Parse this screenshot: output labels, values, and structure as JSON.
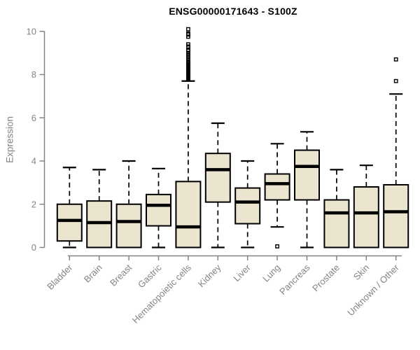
{
  "chart_data": {
    "type": "boxplot",
    "title": "ENSG00000171643 - S100Z",
    "ylabel": "Expression",
    "xlabel": "",
    "ylim": [
      0,
      10
    ],
    "yticks": [
      0,
      2,
      4,
      6,
      8,
      10
    ],
    "grid": false,
    "legend": false,
    "categories": [
      "Bladder",
      "Brain",
      "Breast",
      "Gastric",
      "Hematopoietic cells",
      "Kidney",
      "Liver",
      "Lung",
      "Pancreas",
      "Prostate",
      "Skin",
      "Unknown / Other"
    ],
    "boxes": [
      {
        "category": "Bladder",
        "whisker_low": 0,
        "q1": 0.3,
        "median": 1.25,
        "q3": 2.0,
        "whisker_high": 3.7,
        "outliers": []
      },
      {
        "category": "Brain",
        "whisker_low": 0,
        "q1": 0,
        "median": 1.15,
        "q3": 2.15,
        "whisker_high": 3.6,
        "outliers": []
      },
      {
        "category": "Breast",
        "whisker_low": 0,
        "q1": 0,
        "median": 1.2,
        "q3": 2.0,
        "whisker_high": 4.0,
        "outliers": []
      },
      {
        "category": "Gastric",
        "whisker_low": 0,
        "q1": 1.0,
        "median": 1.95,
        "q3": 2.45,
        "whisker_high": 3.65,
        "outliers": []
      },
      {
        "category": "Hematopoietic cells",
        "whisker_low": 0,
        "q1": 0,
        "median": 0.95,
        "q3": 3.05,
        "whisker_high": 7.7,
        "outliers": [
          7.8,
          7.83,
          7.86,
          7.9,
          7.93,
          7.96,
          8.0,
          8.03,
          8.06,
          8.1,
          8.13,
          8.17,
          8.2,
          8.24,
          8.28,
          8.32,
          8.36,
          8.4,
          8.45,
          8.5,
          8.55,
          8.6,
          8.7,
          8.8,
          8.9,
          9.0,
          9.1,
          9.15,
          9.25,
          9.3,
          9.4,
          9.75,
          9.85,
          9.9,
          10.1
        ]
      },
      {
        "category": "Kidney",
        "whisker_low": 0,
        "q1": 2.1,
        "median": 3.6,
        "q3": 4.35,
        "whisker_high": 5.75,
        "outliers": []
      },
      {
        "category": "Liver",
        "whisker_low": 0,
        "q1": 1.1,
        "median": 2.1,
        "q3": 2.75,
        "whisker_high": 4.0,
        "outliers": []
      },
      {
        "category": "Lung",
        "whisker_low": 0.95,
        "q1": 2.2,
        "median": 2.95,
        "q3": 3.4,
        "whisker_high": 4.8,
        "outliers": [
          0.05
        ]
      },
      {
        "category": "Pancreas",
        "whisker_low": 0,
        "q1": 2.2,
        "median": 3.75,
        "q3": 4.5,
        "whisker_high": 5.35,
        "outliers": []
      },
      {
        "category": "Prostate",
        "whisker_low": 0,
        "q1": 0,
        "median": 1.6,
        "q3": 2.2,
        "whisker_high": 3.6,
        "outliers": []
      },
      {
        "category": "Skin",
        "whisker_low": 0,
        "q1": 0,
        "median": 1.6,
        "q3": 2.8,
        "whisker_high": 3.8,
        "outliers": []
      },
      {
        "category": "Unknown / Other",
        "whisker_low": 0,
        "q1": 0,
        "median": 1.65,
        "q3": 2.9,
        "whisker_high": 7.1,
        "outliers": [
          7.7,
          8.7
        ]
      }
    ]
  },
  "colors": {
    "background": "#ffffff",
    "box_fill": "#ebe5cf",
    "box_border": "#000000",
    "median": "#000000",
    "whisker": "#000000",
    "outlier": "#000000",
    "axis": "#848484",
    "tick_label": "#848484",
    "title": "#000000"
  }
}
